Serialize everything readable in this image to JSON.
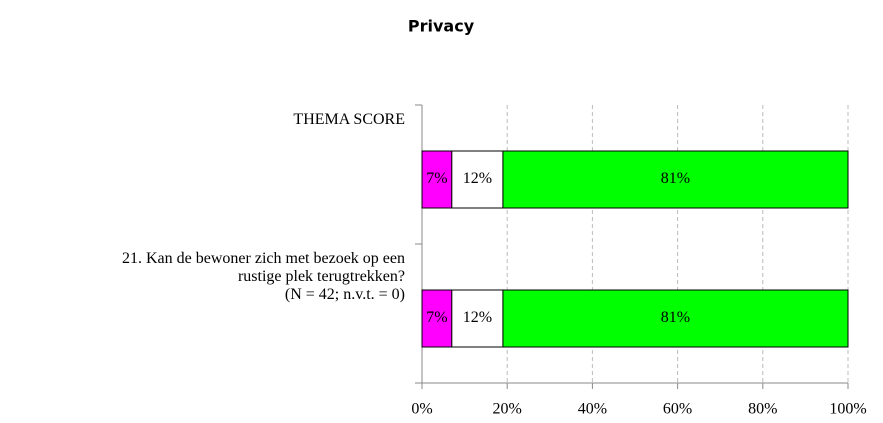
{
  "chart_data": {
    "type": "stacked_barh",
    "title": "Privacy",
    "categories": [
      "THEMA SCORE",
      "21. Kan de bewoner zich met bezoek op een\nrustige plek terugtrekken?\n(N = 42; n.v.t. = 0)"
    ],
    "series": [
      {
        "color": "#ff00ff",
        "values": [
          7,
          7
        ],
        "value_labels": [
          "7%",
          "7%"
        ]
      },
      {
        "color": "#ffffff",
        "values": [
          12,
          12
        ],
        "value_labels": [
          "12%",
          "12%"
        ]
      },
      {
        "color": "#00ff00",
        "values": [
          81,
          81
        ],
        "value_labels": [
          "81%",
          "81%"
        ]
      }
    ],
    "xlim": [
      0,
      100
    ],
    "xticks": [
      {
        "value": 0,
        "label": "0%"
      },
      {
        "value": 20,
        "label": "20%"
      },
      {
        "value": 40,
        "label": "40%"
      },
      {
        "value": 60,
        "label": "60%"
      },
      {
        "value": 80,
        "label": "80%"
      },
      {
        "value": 100,
        "label": "100%"
      }
    ],
    "grid": true
  }
}
